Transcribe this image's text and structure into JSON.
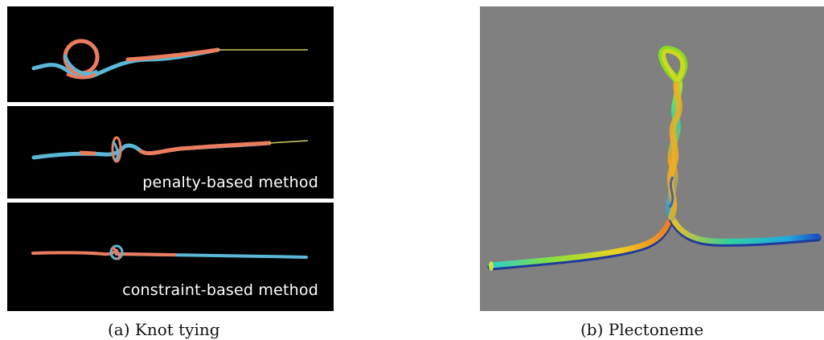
{
  "panels": {
    "knot_tying": {
      "frames": [
        {
          "label": ""
        },
        {
          "label": "penalty-based method"
        },
        {
          "label": "constraint-based method"
        }
      ]
    },
    "plectoneme": {}
  },
  "captions": {
    "a": "(a) Knot tying",
    "b": "(b) Plectoneme"
  },
  "colors": {
    "rod_blue": "#5ab8d6",
    "rod_orange": "#ec7c5e",
    "thread_yellow": "#c8c860",
    "frame_background": "#000000",
    "plectoneme_background": "#808080"
  }
}
